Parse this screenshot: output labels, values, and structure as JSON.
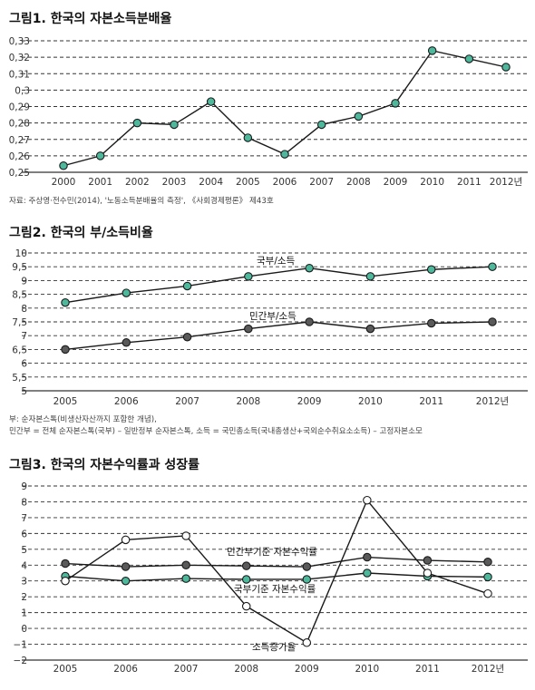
{
  "chart_data": [
    {
      "type": "line",
      "title": "그림1. 한국의 자본소득분배율",
      "categories": [
        "2000",
        "2001",
        "2002",
        "2003",
        "2004",
        "2005",
        "2006",
        "2007",
        "2008",
        "2009",
        "2010",
        "2011",
        "2012년"
      ],
      "series": [
        {
          "name": "",
          "values": [
            0.254,
            0.26,
            0.28,
            0.279,
            0.293,
            0.271,
            0.261,
            0.279,
            0.284,
            0.292,
            0.324,
            0.319,
            0.314
          ],
          "color": "#4db89b"
        }
      ],
      "ylim": [
        0.25,
        0.33
      ],
      "y_ticks": [
        "0,25",
        "0,26",
        "0,27",
        "0,28",
        "0,29",
        "0,3",
        "0,31",
        "0,32",
        "0,33"
      ],
      "source": "자료: 주상영·전수민(2014), '노동소득분배율의 측정', 《사회경제평론》 제43호",
      "grid": "dashed horizontal"
    },
    {
      "type": "line",
      "title": "그림2. 한국의 부/소득비율",
      "categories": [
        "2005",
        "2006",
        "2007",
        "2008",
        "2009",
        "2010",
        "2011",
        "2012년"
      ],
      "series": [
        {
          "name": "국부/소득",
          "values": [
            8.2,
            8.55,
            8.8,
            9.15,
            9.45,
            9.15,
            9.4,
            9.5
          ],
          "color": "#4db89b"
        },
        {
          "name": "민간부/소득",
          "values": [
            6.5,
            6.75,
            6.95,
            7.25,
            7.5,
            7.25,
            7.45,
            7.5
          ],
          "color": "#5a5a5a"
        }
      ],
      "ylim": [
        5,
        10
      ],
      "y_ticks": [
        "5",
        "5,5",
        "6",
        "6,5",
        "7",
        "7,5",
        "8",
        "8,5",
        "9",
        "9,5",
        "10"
      ],
      "notes": [
        "부: 순자본스톡(비생산자산까지 포함한 개념),",
        "민간부 = 전체 순자본스톡(국부) – 일반정부 순자본스톡, 소득 = 국민총소득(국내총생산+국외순수취요소소득) – 고정자본소모"
      ],
      "grid": "dashed horizontal"
    },
    {
      "type": "line",
      "title": "그림3. 한국의 자본수익률과 성장률",
      "categories": [
        "2005",
        "2006",
        "2007",
        "2008",
        "2009",
        "2010",
        "2011",
        "2012년"
      ],
      "series": [
        {
          "name": "민간부기준 자본수익률",
          "values": [
            4.1,
            3.9,
            4.0,
            3.95,
            3.9,
            4.5,
            4.3,
            4.2
          ],
          "color": "#5a5a5a"
        },
        {
          "name": "국부기준 자본수익률",
          "values": [
            3.3,
            3.0,
            3.15,
            3.1,
            3.1,
            3.5,
            3.3,
            3.25
          ],
          "color": "#4db89b"
        },
        {
          "name": "소득증가율",
          "values": [
            3.0,
            5.6,
            5.85,
            1.4,
            -0.9,
            8.1,
            3.5,
            2.2
          ],
          "color": "#ffffff"
        }
      ],
      "ylim": [
        -2,
        9
      ],
      "y_ticks": [
        "−2",
        "−1",
        "0",
        "1",
        "2",
        "3",
        "4",
        "5",
        "6",
        "7",
        "8",
        "9"
      ],
      "grid": "dashed horizontal"
    }
  ]
}
